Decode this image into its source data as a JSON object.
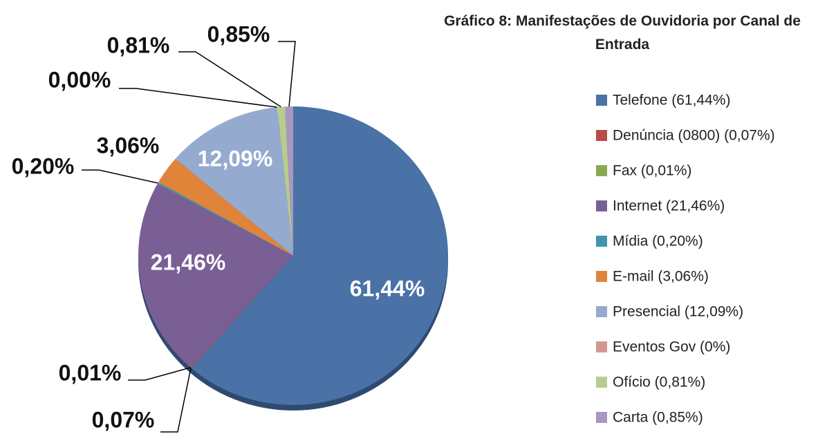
{
  "chart_data": {
    "type": "pie",
    "title": "Gráfico 8: Manifestações de Ouvidoria por Canal de Entrada",
    "categories": [
      "Telefone (61,44%)",
      "Denúncia (0800) (0,07%)",
      "Fax (0,01%)",
      "Internet (21,46%)",
      "Mídia (0,20%)",
      "E-mail (3,06%)",
      "Presencial (12,09%)",
      "Eventos Gov (0%)",
      "Ofício (0,81%)",
      "Carta (0,85%)"
    ],
    "values": [
      61.44,
      0.07,
      0.01,
      21.46,
      0.2,
      3.06,
      12.09,
      0,
      0.81,
      0.85
    ],
    "value_labels": [
      "61,44%",
      "0,07%",
      "0,01%",
      "21,46%",
      "0,20%",
      "3,06%",
      "12,09%",
      "0,00%",
      "0,81%",
      "0,85%"
    ],
    "colors": [
      "#4a72a6",
      "#b84c4a",
      "#8aa853",
      "#7a5f95",
      "#4096ad",
      "#e0843a",
      "#95aacf",
      "#d59593",
      "#b7cc8e",
      "#a898c0"
    ],
    "legend": "right"
  }
}
